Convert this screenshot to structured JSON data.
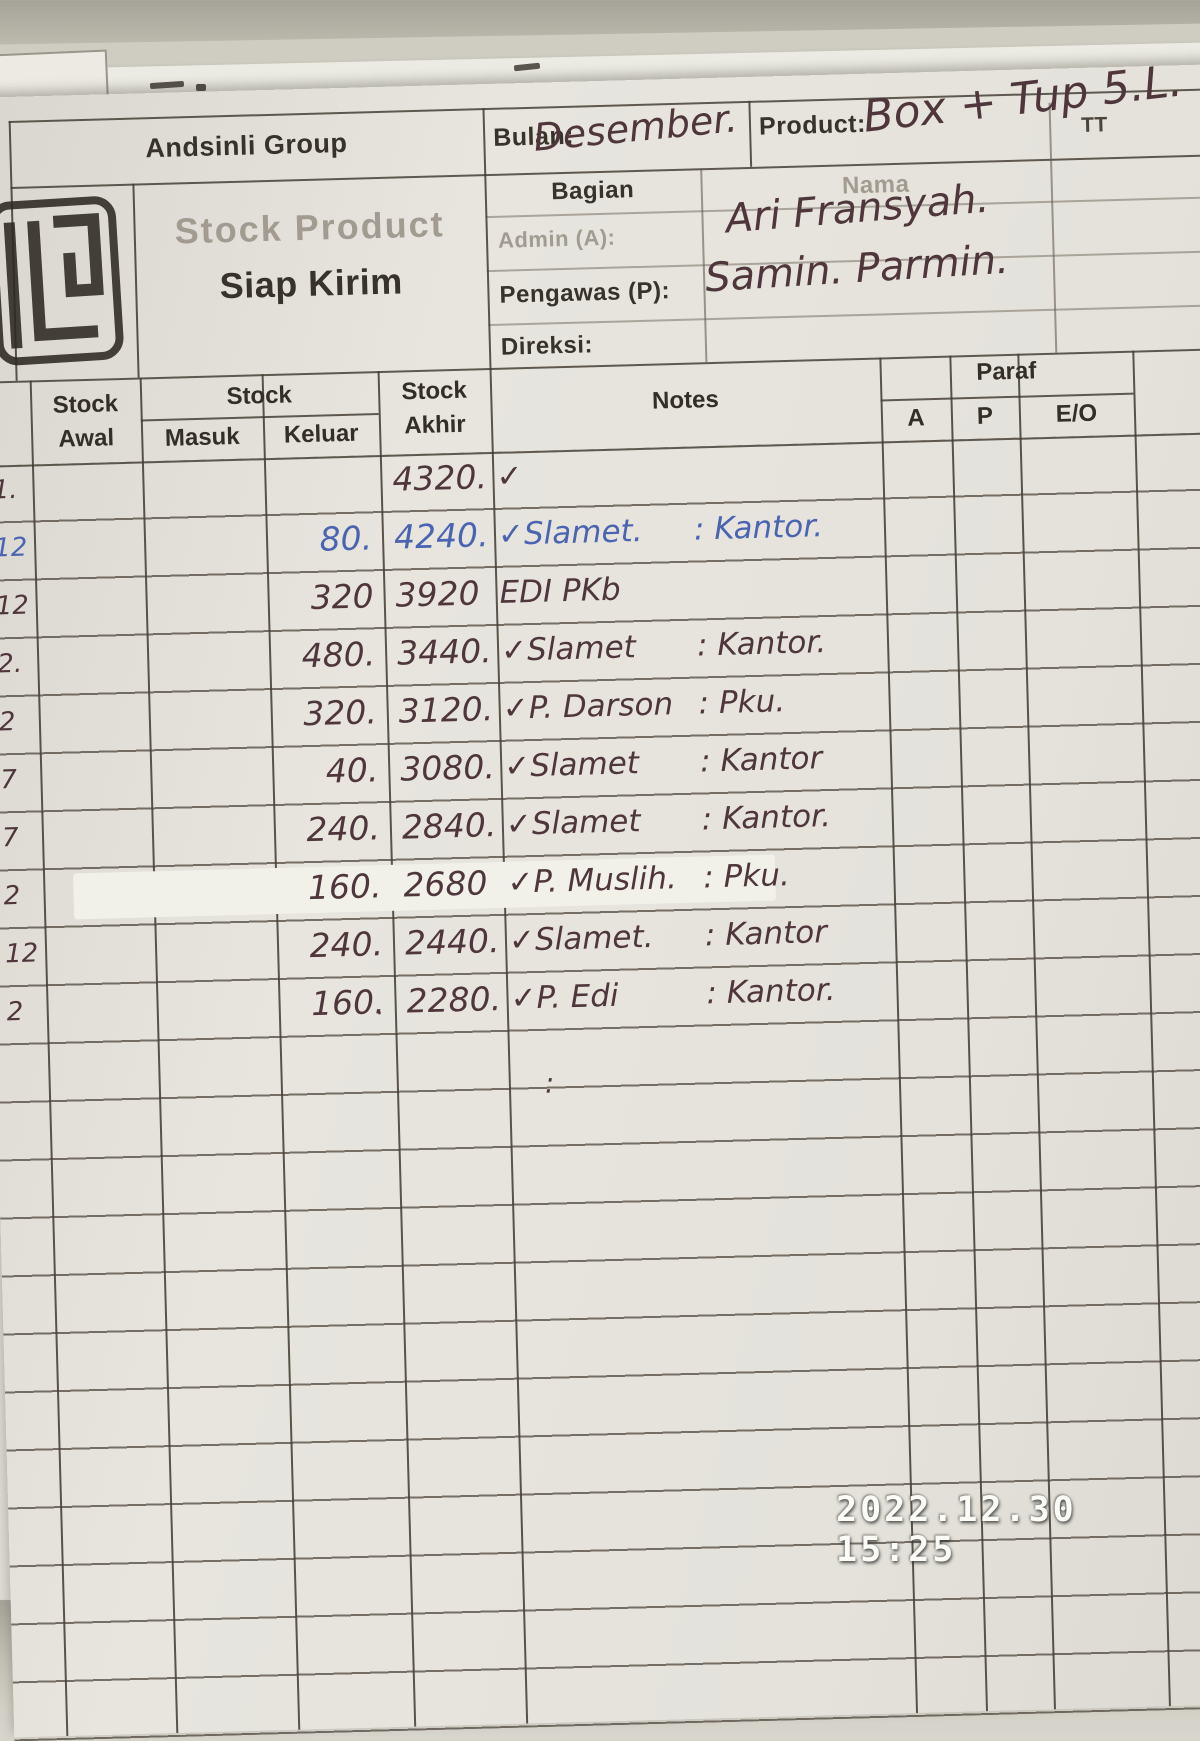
{
  "header": {
    "company": "Andsinli Group",
    "title_line1": "Stock Product",
    "title_line2": "Siap Kirim",
    "bulan_label": "Bulan:",
    "bulan_value": "Desember.",
    "product_label": "Product:",
    "product_value": "Box + Tup 5.L.",
    "tt_label": "TT",
    "bagian_label": "Bagian",
    "nama_label": "Nama",
    "admin_label": "Admin (A):",
    "admin_value": "Ari Fransyah.",
    "pengawas_label": "Pengawas (P):",
    "pengawas_value": "Samin. Parmin.",
    "direksi_label": "Direksi:",
    "direksi_value": ""
  },
  "table": {
    "headers": {
      "stock_awal_l1": "Stock",
      "stock_awal_l2": "Awal",
      "stock_group": "Stock",
      "masuk": "Masuk",
      "keluar": "Keluar",
      "stock_akhir_l1": "Stock",
      "stock_akhir_l2": "Akhir",
      "notes": "Notes",
      "paraf": "Paraf",
      "paraf_a": "A",
      "paraf_p": "P",
      "paraf_eo": "E/O"
    },
    "rows": [
      {
        "day": "1.",
        "keluar": "",
        "akhir": "4320.",
        "note_name": "✓",
        "note_place": "",
        "ink": "dark"
      },
      {
        "day": "12",
        "keluar": "80.",
        "akhir": "4240.",
        "note_name": "✓Slamet.",
        "note_place": ": Kantor.",
        "ink": "blue"
      },
      {
        "day": "12",
        "keluar": "320",
        "akhir": "3920",
        "note_name": "EDI PKb",
        "note_place": "",
        "ink": "dark"
      },
      {
        "day": "2.",
        "keluar": "480.",
        "akhir": "3440.",
        "note_name": "✓Slamet",
        "note_place": ": Kantor.",
        "ink": "dark"
      },
      {
        "day": "2",
        "keluar": "320.",
        "akhir": "3120.",
        "note_name": "✓P. Darson",
        "note_place": ": Pku.",
        "ink": "dark"
      },
      {
        "day": "7",
        "keluar": "40.",
        "akhir": "3080.",
        "note_name": "✓Slamet",
        "note_place": ": Kantor",
        "ink": "dark"
      },
      {
        "day": "7",
        "keluar": "240.",
        "akhir": "2840.",
        "note_name": "✓Slamet",
        "note_place": ": Kantor.",
        "ink": "dark"
      },
      {
        "day": "2",
        "keluar": "160.",
        "akhir": "2680",
        "note_name": "✓P. Muslih.",
        "note_place": ": Pku.",
        "ink": "dark",
        "tape": true
      },
      {
        "day": "12",
        "keluar": "240.",
        "akhir": "2440.",
        "note_name": "✓Slamet.",
        "note_place": ": Kantor",
        "ink": "dark"
      },
      {
        "day": "2",
        "keluar": "160.",
        "akhir": "2280.",
        "note_name": "✓P. Edi",
        "note_place": ": Kantor.",
        "ink": "dark"
      }
    ],
    "stray_marks": [
      {
        "glyph": ":"
      },
      {
        "glyph": "."
      },
      {
        "glyph": "."
      }
    ]
  },
  "camera": {
    "timestamp": "2022.12.30 15:25"
  },
  "colors": {
    "paper": "#e4e2db",
    "ink_dark": "#4e363c",
    "ink_blue": "#4a64b2",
    "print_dark": "#37322a",
    "print_faint": "#a29c90",
    "grid_line": "#42392f"
  }
}
